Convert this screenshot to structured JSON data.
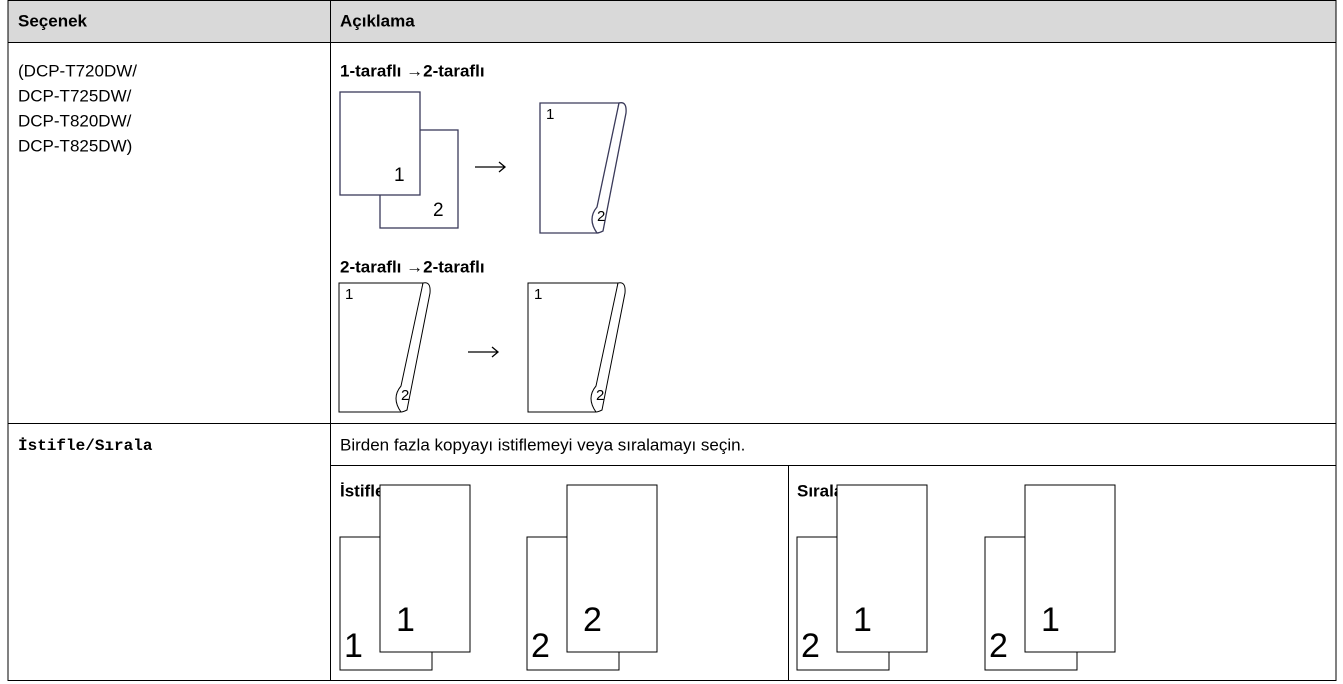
{
  "table": {
    "header": [
      "Seçenek",
      "Açıklama"
    ],
    "rows": [
      {
        "option": [
          "(DCP-T720DW/",
          "DCP-T725DW/",
          "DCP-T820DW/",
          "DCP-T825DW)"
        ],
        "sections": [
          {
            "title": "1-taraflı →2-taraflı",
            "page_labels": [
              "1",
              "2",
              "1",
              "2"
            ]
          },
          {
            "title": "2-taraflı →2-taraflı",
            "page_labels": [
              "1",
              "2",
              "1",
              "2"
            ]
          }
        ]
      },
      {
        "option": "İstifle/Sırala",
        "description": "Birden fazla kopyayı istiflemeyi veya sıralamayı seçin.",
        "columns": [
          {
            "title": "İstifle",
            "page_labels": [
              "1",
              "1",
              "2",
              "2"
            ]
          },
          {
            "title": "Sırala",
            "page_labels": [
              "2",
              "1",
              "2",
              "1"
            ]
          }
        ]
      }
    ]
  }
}
